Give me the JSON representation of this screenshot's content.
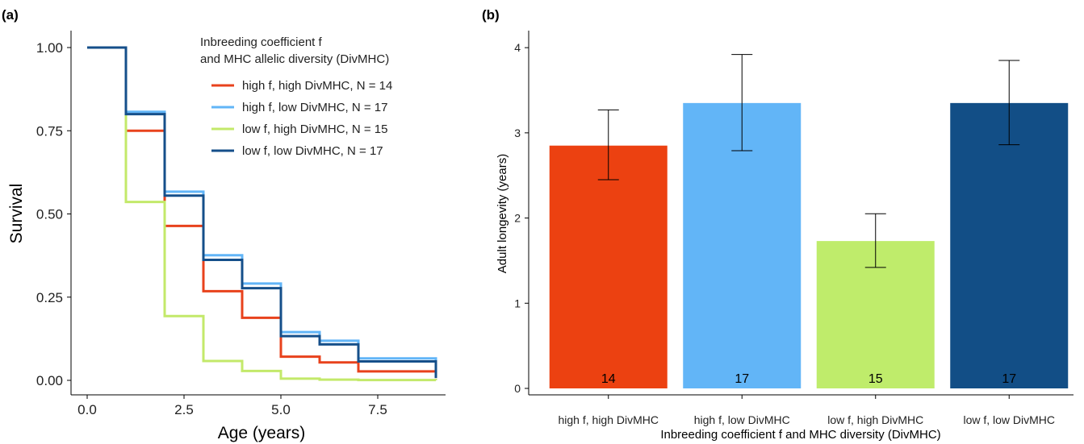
{
  "chart_data": [
    {
      "panel": "(a)",
      "type": "line",
      "step": true,
      "xlabel": "Age (years)",
      "ylabel": "Survival",
      "xlim": [
        0,
        9
      ],
      "ylim": [
        0,
        1
      ],
      "x_ticks": [
        "0.0",
        "2.5",
        "5.0",
        "7.5"
      ],
      "y_ticks": [
        "0.00",
        "0.25",
        "0.50",
        "0.75",
        "1.00"
      ],
      "legend": {
        "title_line1": "Inbreeding coefficient f",
        "title_line2": "and MHC allelic diversity (DivMHC)",
        "placement": "top-right"
      },
      "grid": false,
      "series": [
        {
          "name": "high f, high DivMHC, N = 14",
          "color": "#e8421c",
          "x": [
            0,
            1,
            2,
            3,
            4,
            5,
            6,
            7,
            9
          ],
          "y": [
            1.0,
            0.75,
            0.464,
            0.268,
            0.188,
            0.071,
            0.054,
            0.027,
            0.007
          ]
        },
        {
          "name": "high f, low DivMHC, N = 17",
          "color": "#62b5f7",
          "x": [
            0,
            1,
            2,
            3,
            4,
            5,
            6,
            7,
            9
          ],
          "y": [
            1.0,
            0.807,
            0.567,
            0.376,
            0.291,
            0.145,
            0.119,
            0.066,
            0.01
          ]
        },
        {
          "name": "low f, high DivMHC, N = 15",
          "color": "#c3e96a",
          "x": [
            0,
            1,
            2,
            3,
            4,
            5,
            6,
            7,
            9
          ],
          "y": [
            1.0,
            0.536,
            0.193,
            0.058,
            0.028,
            0.005,
            0.002,
            0.001,
            0.0
          ]
        },
        {
          "name": "low f, low DivMHC, N = 17",
          "color": "#154f8a",
          "x": [
            0,
            1,
            2,
            3,
            4,
            5,
            6,
            7,
            9
          ],
          "y": [
            1.0,
            0.8,
            0.555,
            0.362,
            0.277,
            0.133,
            0.108,
            0.057,
            0.007
          ]
        }
      ]
    },
    {
      "panel": "(b)",
      "type": "bar",
      "xlabel": "Inbreeding coefficient f and MHC diversity (DivMHC)",
      "ylabel": "Adult longevity (years)",
      "ylim": [
        0,
        4.2
      ],
      "y_ticks": [
        "0",
        "1",
        "2",
        "3",
        "4"
      ],
      "grid": false,
      "categories": [
        "high f, high DivMHC",
        "high f, low DivMHC",
        "low f, high DivMHC",
        "low f, low DivMHC"
      ],
      "values": [
        2.85,
        3.35,
        1.73,
        3.35
      ],
      "error_low": [
        2.45,
        2.79,
        1.42,
        2.86
      ],
      "error_high": [
        3.27,
        3.92,
        2.05,
        3.85
      ],
      "n_labels": [
        "14",
        "17",
        "15",
        "17"
      ],
      "colors": [
        "#ec4111",
        "#62b5f7",
        "#bfec6b",
        "#124e86"
      ]
    }
  ]
}
